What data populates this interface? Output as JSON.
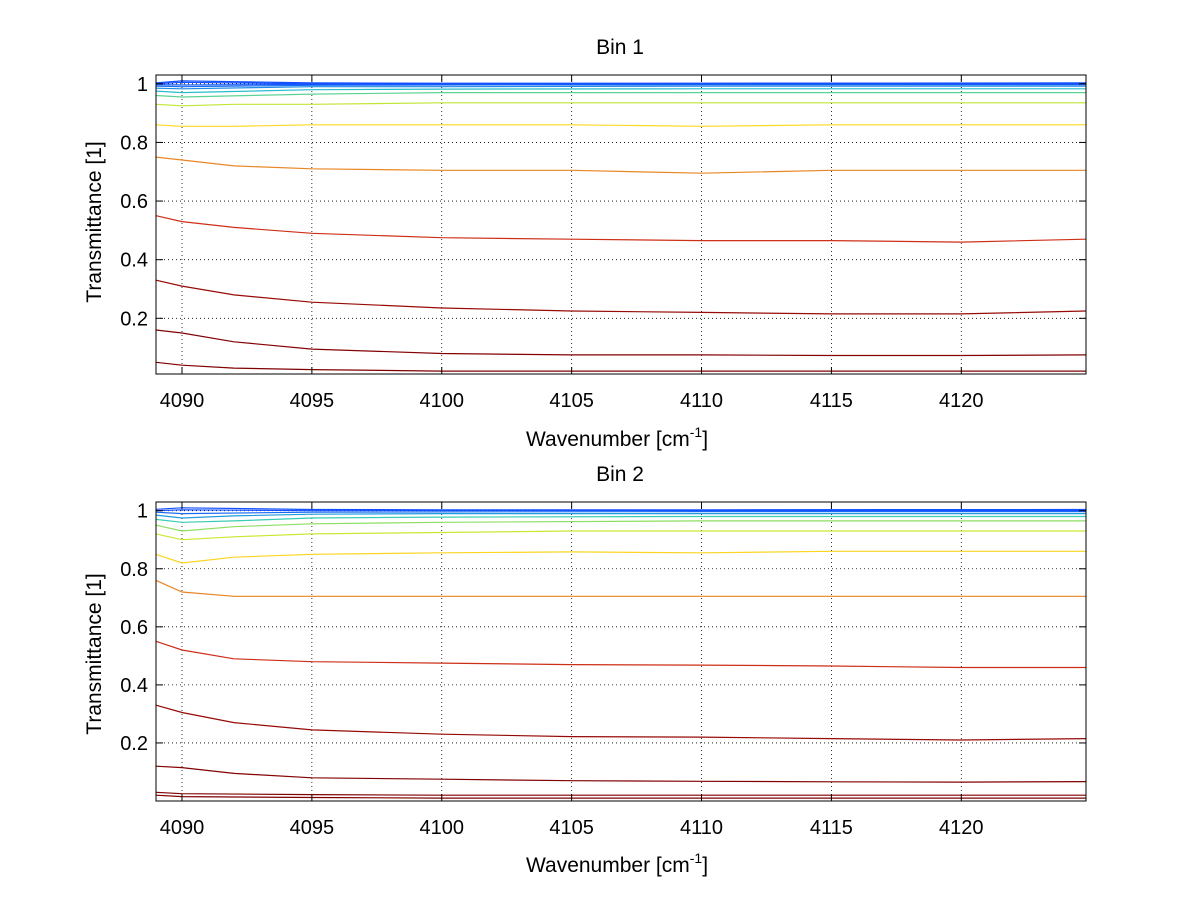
{
  "colors": {
    "background": "#ffffff",
    "axis": "#000000",
    "grid": "#000000",
    "scale_low": "#8b0000",
    "scale_mid": "#ff8c00",
    "scale_high": "#ffff00",
    "scale_top": "#00aaff"
  },
  "chart_data": [
    {
      "type": "line",
      "title": "Bin 1",
      "xlabel": "Wavenumber [cm",
      "xlabel_sup": "-1",
      "xlabel_end": "]",
      "ylabel": "Transmittance [1]",
      "xlim": [
        4089,
        4124.8
      ],
      "ylim": [
        0.01,
        1.03
      ],
      "xticks": [
        4090,
        4095,
        4100,
        4105,
        4110,
        4115,
        4120
      ],
      "xtick_labels": [
        "4090",
        "4095",
        "4100",
        "4105",
        "4110",
        "4115",
        "4120"
      ],
      "yticks": [
        0.2,
        0.4,
        0.6,
        0.8,
        1
      ],
      "ytick_labels": [
        "0.2",
        "0.4",
        "0.6",
        "0.8",
        "1"
      ],
      "grid": true,
      "colormap": "jet (curves colored from dark red at low transmittance to blue near 1)",
      "series": [
        {
          "values": [
            [
              4089,
              0.05
            ],
            [
              4090,
              0.04
            ],
            [
              4092,
              0.03
            ],
            [
              4095,
              0.025
            ],
            [
              4100,
              0.02
            ],
            [
              4110,
              0.02
            ],
            [
              4124.8,
              0.02
            ]
          ]
        },
        {
          "values": [
            [
              4089,
              0.16
            ],
            [
              4090,
              0.15
            ],
            [
              4092,
              0.12
            ],
            [
              4095,
              0.095
            ],
            [
              4100,
              0.08
            ],
            [
              4105,
              0.075
            ],
            [
              4110,
              0.075
            ],
            [
              4115,
              0.073
            ],
            [
              4120,
              0.073
            ],
            [
              4124.8,
              0.075
            ]
          ]
        },
        {
          "values": [
            [
              4089,
              0.33
            ],
            [
              4090,
              0.31
            ],
            [
              4092,
              0.28
            ],
            [
              4095,
              0.255
            ],
            [
              4100,
              0.235
            ],
            [
              4105,
              0.225
            ],
            [
              4110,
              0.22
            ],
            [
              4115,
              0.215
            ],
            [
              4120,
              0.215
            ],
            [
              4124.8,
              0.225
            ]
          ]
        },
        {
          "values": [
            [
              4089,
              0.55
            ],
            [
              4090,
              0.53
            ],
            [
              4092,
              0.51
            ],
            [
              4095,
              0.49
            ],
            [
              4100,
              0.475
            ],
            [
              4105,
              0.47
            ],
            [
              4110,
              0.465
            ],
            [
              4115,
              0.465
            ],
            [
              4120,
              0.46
            ],
            [
              4124.8,
              0.47
            ]
          ]
        },
        {
          "values": [
            [
              4089,
              0.75
            ],
            [
              4090,
              0.74
            ],
            [
              4092,
              0.72
            ],
            [
              4095,
              0.71
            ],
            [
              4100,
              0.705
            ],
            [
              4105,
              0.705
            ],
            [
              4110,
              0.695
            ],
            [
              4115,
              0.705
            ],
            [
              4120,
              0.705
            ],
            [
              4124.8,
              0.705
            ]
          ]
        },
        {
          "values": [
            [
              4089,
              0.86
            ],
            [
              4090,
              0.855
            ],
            [
              4092,
              0.855
            ],
            [
              4095,
              0.86
            ],
            [
              4100,
              0.86
            ],
            [
              4105,
              0.86
            ],
            [
              4110,
              0.855
            ],
            [
              4115,
              0.86
            ],
            [
              4120,
              0.86
            ],
            [
              4124.8,
              0.86
            ]
          ]
        },
        {
          "values": [
            [
              4089,
              0.93
            ],
            [
              4090,
              0.925
            ],
            [
              4092,
              0.93
            ],
            [
              4095,
              0.93
            ],
            [
              4100,
              0.935
            ],
            [
              4105,
              0.935
            ],
            [
              4110,
              0.935
            ],
            [
              4115,
              0.935
            ],
            [
              4120,
              0.935
            ],
            [
              4124.8,
              0.935
            ]
          ]
        },
        {
          "values": [
            [
              4089,
              0.96
            ],
            [
              4090,
              0.955
            ],
            [
              4095,
              0.965
            ],
            [
              4100,
              0.97
            ],
            [
              4110,
              0.97
            ],
            [
              4124.8,
              0.97
            ]
          ]
        },
        {
          "values": [
            [
              4089,
              0.975
            ],
            [
              4090,
              0.97
            ],
            [
              4095,
              0.98
            ],
            [
              4100,
              0.982
            ],
            [
              4110,
              0.983
            ],
            [
              4124.8,
              0.983
            ]
          ]
        },
        {
          "values": [
            [
              4089,
              0.985
            ],
            [
              4090,
              0.983
            ],
            [
              4095,
              0.99
            ],
            [
              4100,
              0.99
            ],
            [
              4110,
              0.992
            ],
            [
              4124.8,
              0.992
            ]
          ]
        },
        {
          "values": [
            [
              4089,
              0.992
            ],
            [
              4090,
              0.99
            ],
            [
              4095,
              0.995
            ],
            [
              4100,
              0.996
            ],
            [
              4110,
              0.997
            ],
            [
              4124.8,
              0.997
            ]
          ]
        },
        {
          "values": [
            [
              4089,
              0.997
            ],
            [
              4090,
              0.996
            ],
            [
              4095,
              0.998
            ],
            [
              4100,
              0.999
            ],
            [
              4110,
              0.999
            ],
            [
              4124.8,
              0.999
            ]
          ]
        },
        {
          "values": [
            [
              4089,
              1.0
            ],
            [
              4090,
              1.005
            ],
            [
              4095,
              1.0
            ],
            [
              4100,
              1.0
            ],
            [
              4110,
              1.001
            ],
            [
              4124.8,
              1.0
            ]
          ]
        },
        {
          "values": [
            [
              4089,
              1.003
            ],
            [
              4090,
              1.01
            ],
            [
              4095,
              1.003
            ],
            [
              4100,
              1.002
            ],
            [
              4110,
              1.002
            ],
            [
              4124.8,
              1.003
            ]
          ]
        }
      ]
    },
    {
      "type": "line",
      "title": "Bin 2",
      "xlabel": "Wavenumber [cm",
      "xlabel_sup": "-1",
      "xlabel_end": "]",
      "ylabel": "Transmittance [1]",
      "xlim": [
        4089,
        4124.8
      ],
      "ylim": [
        0.0,
        1.03
      ],
      "xticks": [
        4090,
        4095,
        4100,
        4105,
        4110,
        4115,
        4120
      ],
      "xtick_labels": [
        "4090",
        "4095",
        "4100",
        "4105",
        "4110",
        "4115",
        "4120"
      ],
      "yticks": [
        0.2,
        0.4,
        0.6,
        0.8,
        1
      ],
      "ytick_labels": [
        "0.2",
        "0.4",
        "0.6",
        "0.8",
        "1"
      ],
      "grid": true,
      "colormap": "jet (curves colored from dark red at low transmittance to blue near 1)",
      "series": [
        {
          "values": [
            [
              4089,
              0.02
            ],
            [
              4090,
              0.015
            ],
            [
              4095,
              0.012
            ],
            [
              4100,
              0.01
            ],
            [
              4110,
              0.01
            ],
            [
              4124.8,
              0.01
            ]
          ]
        },
        {
          "values": [
            [
              4089,
              0.03
            ],
            [
              4090,
              0.025
            ],
            [
              4095,
              0.022
            ],
            [
              4100,
              0.02
            ],
            [
              4110,
              0.02
            ],
            [
              4124.8,
              0.02
            ]
          ]
        },
        {
          "values": [
            [
              4089,
              0.12
            ],
            [
              4090,
              0.115
            ],
            [
              4092,
              0.095
            ],
            [
              4095,
              0.08
            ],
            [
              4100,
              0.075
            ],
            [
              4105,
              0.07
            ],
            [
              4110,
              0.068
            ],
            [
              4115,
              0.066
            ],
            [
              4120,
              0.065
            ],
            [
              4124.8,
              0.067
            ]
          ]
        },
        {
          "values": [
            [
              4089,
              0.33
            ],
            [
              4090,
              0.305
            ],
            [
              4092,
              0.27
            ],
            [
              4095,
              0.245
            ],
            [
              4100,
              0.23
            ],
            [
              4105,
              0.222
            ],
            [
              4110,
              0.22
            ],
            [
              4115,
              0.215
            ],
            [
              4120,
              0.21
            ],
            [
              4124.8,
              0.215
            ]
          ]
        },
        {
          "values": [
            [
              4089,
              0.55
            ],
            [
              4090,
              0.52
            ],
            [
              4092,
              0.49
            ],
            [
              4095,
              0.48
            ],
            [
              4100,
              0.475
            ],
            [
              4105,
              0.47
            ],
            [
              4110,
              0.468
            ],
            [
              4115,
              0.465
            ],
            [
              4120,
              0.46
            ],
            [
              4124.8,
              0.46
            ]
          ]
        },
        {
          "values": [
            [
              4089,
              0.76
            ],
            [
              4090,
              0.72
            ],
            [
              4092,
              0.705
            ],
            [
              4095,
              0.705
            ],
            [
              4100,
              0.705
            ],
            [
              4105,
              0.705
            ],
            [
              4110,
              0.705
            ],
            [
              4115,
              0.705
            ],
            [
              4120,
              0.705
            ],
            [
              4124.8,
              0.705
            ]
          ]
        },
        {
          "values": [
            [
              4089,
              0.85
            ],
            [
              4090,
              0.82
            ],
            [
              4092,
              0.84
            ],
            [
              4095,
              0.85
            ],
            [
              4100,
              0.855
            ],
            [
              4105,
              0.858
            ],
            [
              4110,
              0.855
            ],
            [
              4115,
              0.86
            ],
            [
              4120,
              0.86
            ],
            [
              4124.8,
              0.86
            ]
          ]
        },
        {
          "values": [
            [
              4089,
              0.92
            ],
            [
              4090,
              0.9
            ],
            [
              4092,
              0.91
            ],
            [
              4095,
              0.92
            ],
            [
              4100,
              0.925
            ],
            [
              4105,
              0.93
            ],
            [
              4110,
              0.93
            ],
            [
              4115,
              0.93
            ],
            [
              4120,
              0.93
            ],
            [
              4124.8,
              0.93
            ]
          ]
        },
        {
          "values": [
            [
              4089,
              0.95
            ],
            [
              4090,
              0.93
            ],
            [
              4092,
              0.945
            ],
            [
              4095,
              0.955
            ],
            [
              4100,
              0.96
            ],
            [
              4110,
              0.965
            ],
            [
              4124.8,
              0.965
            ]
          ]
        },
        {
          "values": [
            [
              4089,
              0.97
            ],
            [
              4090,
              0.96
            ],
            [
              4092,
              0.965
            ],
            [
              4095,
              0.975
            ],
            [
              4100,
              0.978
            ],
            [
              4110,
              0.98
            ],
            [
              4124.8,
              0.98
            ]
          ]
        },
        {
          "values": [
            [
              4089,
              0.985
            ],
            [
              4090,
              0.975
            ],
            [
              4092,
              0.982
            ],
            [
              4095,
              0.988
            ],
            [
              4100,
              0.99
            ],
            [
              4110,
              0.99
            ],
            [
              4124.8,
              0.99
            ]
          ]
        },
        {
          "values": [
            [
              4089,
              0.995
            ],
            [
              4090,
              0.99
            ],
            [
              4095,
              0.995
            ],
            [
              4100,
              0.996
            ],
            [
              4110,
              0.997
            ],
            [
              4124.8,
              0.997
            ]
          ]
        },
        {
          "values": [
            [
              4089,
              1.0
            ],
            [
              4090,
              1.003
            ],
            [
              4095,
              1.0
            ],
            [
              4100,
              1.001
            ],
            [
              4110,
              1.001
            ],
            [
              4124.8,
              1.001
            ]
          ]
        },
        {
          "values": [
            [
              4089,
              1.005
            ],
            [
              4090,
              1.01
            ],
            [
              4095,
              1.004
            ],
            [
              4100,
              1.003
            ],
            [
              4110,
              1.003
            ],
            [
              4124.8,
              1.004
            ]
          ]
        }
      ]
    }
  ]
}
